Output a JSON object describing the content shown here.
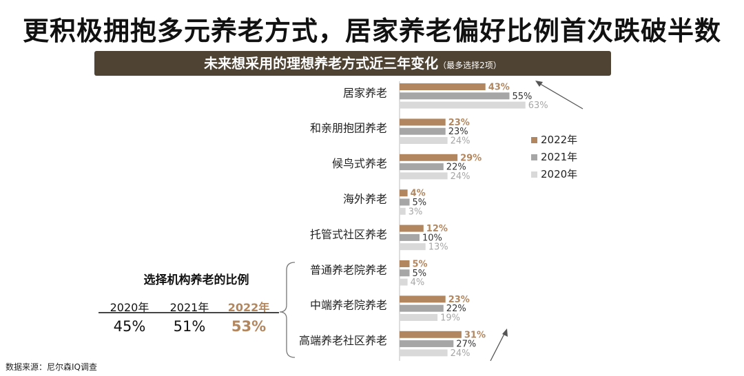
{
  "title": "更积极拥抱多元养老方式，居家养老偏好比例首次跌破半数",
  "banner": {
    "main": "未来想采用的理想养老方式近三年变化",
    "sub": "（最多选择2项）"
  },
  "colors": {
    "2022": "#b2875f",
    "2021": "#a6a6a6",
    "2020": "#d9d9d9",
    "banner_bg": "#4f4333",
    "value_2022": "#b2875f",
    "value_2021": "#333333",
    "value_2020": "#a6a6a6"
  },
  "chart_data": {
    "type": "bar",
    "orientation": "horizontal",
    "title": "未来想采用的理想养老方式近三年变化（最多选择2项）",
    "categories": [
      "居家养老",
      "和亲朋抱团养老",
      "候鸟式养老",
      "海外养老",
      "托管式社区养老",
      "普通养老院养老",
      "中端养老院养老",
      "高端养老社区养老"
    ],
    "unit": "%",
    "series": [
      {
        "name": "2022年",
        "key": "2022",
        "values": [
          43,
          23,
          29,
          4,
          12,
          5,
          23,
          31
        ]
      },
      {
        "name": "2021年",
        "key": "2021",
        "values": [
          55,
          23,
          22,
          5,
          10,
          5,
          22,
          27
        ]
      },
      {
        "name": "2020年",
        "key": "2020",
        "values": [
          63,
          24,
          24,
          3,
          13,
          4,
          19,
          24
        ]
      }
    ],
    "legend": [
      "2022年",
      "2021年",
      "2020年"
    ],
    "legend_position": "right",
    "annotations": [
      "down-arrow for 居家养老",
      "up-arrow for 高端养老社区养老"
    ]
  },
  "institution": {
    "title": "选择机构养老的比例",
    "years": [
      "2020年",
      "2021年",
      "2022年"
    ],
    "values": [
      "45%",
      "51%",
      "53%"
    ]
  },
  "source": "数据来源：尼尔森IQ调查"
}
